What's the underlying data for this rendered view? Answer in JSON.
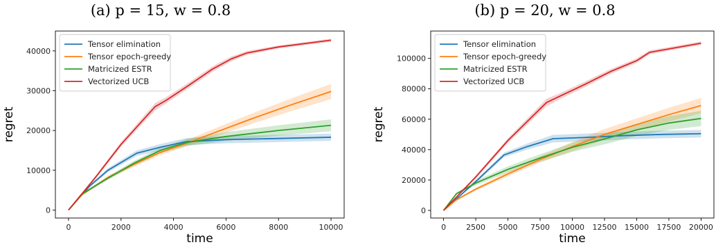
{
  "chart_data": [
    {
      "type": "line",
      "title": "(a) p = 15, w = 0.8",
      "xlabel": "time",
      "ylabel": "regret",
      "xlim": [
        -500,
        10500
      ],
      "ylim": [
        -2000,
        45000
      ],
      "xticks": [
        0,
        2000,
        4000,
        6000,
        8000,
        10000
      ],
      "yticks": [
        0,
        10000,
        20000,
        30000,
        40000
      ],
      "grid": false,
      "legend": "top-left",
      "series": [
        {
          "name": "Tensor elimination",
          "color": "#1f77b4",
          "x": [
            0,
            800,
            1500,
            2600,
            3500,
            4500,
            6000,
            8000,
            10000
          ],
          "y": [
            0,
            6000,
            10000,
            14300,
            15800,
            17200,
            17700,
            18000,
            18300
          ],
          "band": [
            0,
            300,
            500,
            700,
            800,
            900,
            900,
            900,
            900
          ]
        },
        {
          "name": "Tensor epoch-greedy",
          "color": "#ff7f0e",
          "x": [
            0,
            500,
            1500,
            2500,
            3500,
            4500,
            5500,
            7000,
            8500,
            10000
          ],
          "y": [
            0,
            3800,
            8200,
            11500,
            14500,
            16800,
            19300,
            23000,
            26500,
            29800
          ],
          "band": [
            0,
            300,
            400,
            600,
            700,
            800,
            1000,
            1300,
            1600,
            1900
          ]
        },
        {
          "name": "Matricized ESTR",
          "color": "#2ca02c",
          "x": [
            0,
            500,
            1500,
            2500,
            3500,
            4500,
            6000,
            8000,
            10000
          ],
          "y": [
            0,
            4000,
            8000,
            11800,
            15000,
            17000,
            18500,
            20000,
            21300
          ],
          "band": [
            0,
            300,
            400,
            600,
            700,
            900,
            1100,
            1300,
            1500
          ]
        },
        {
          "name": "Vectorized UCB",
          "color": "#d62728",
          "x": [
            0,
            1000,
            2000,
            3300,
            3700,
            4500,
            5500,
            6200,
            6800,
            8000,
            10000
          ],
          "y": [
            0,
            8000,
            16500,
            26000,
            27500,
            31000,
            35500,
            38000,
            39500,
            41000,
            42700
          ],
          "band": [
            0,
            400,
            600,
            900,
            800,
            700,
            700,
            600,
            500,
            400,
            400
          ]
        }
      ]
    },
    {
      "type": "line",
      "title": "(b) p = 20, w = 0.8",
      "xlabel": "time",
      "ylabel": "regret",
      "xlim": [
        -1000,
        21000
      ],
      "ylim": [
        -5000,
        118000
      ],
      "xticks": [
        0,
        2500,
        5000,
        7500,
        10000,
        12500,
        15000,
        17500,
        20000
      ],
      "yticks": [
        0,
        20000,
        40000,
        60000,
        80000,
        100000
      ],
      "grid": false,
      "legend": "top-left",
      "series": [
        {
          "name": "Tensor elimination",
          "color": "#1f77b4",
          "x": [
            0,
            2500,
            4700,
            6500,
            8500,
            11000,
            14000,
            17000,
            20000
          ],
          "y": [
            0,
            19000,
            36500,
            42000,
            47200,
            48000,
            49200,
            50000,
            50500
          ],
          "band": [
            0,
            1000,
            1500,
            2000,
            2500,
            2500,
            2500,
            2500,
            2500
          ]
        },
        {
          "name": "Tensor epoch-greedy",
          "color": "#ff7f0e",
          "x": [
            0,
            1000,
            2500,
            5000,
            7500,
            10000,
            12500,
            15000,
            17500,
            20000
          ],
          "y": [
            0,
            7000,
            14000,
            24000,
            33500,
            42000,
            50000,
            56500,
            63000,
            69000
          ],
          "band": [
            0,
            500,
            1000,
            1500,
            2000,
            3000,
            3500,
            4000,
            4500,
            5000
          ]
        },
        {
          "name": "Matricized ESTR",
          "color": "#2ca02c",
          "x": [
            0,
            1000,
            2500,
            5000,
            7500,
            10000,
            12500,
            15000,
            17500,
            20000
          ],
          "y": [
            0,
            11000,
            18000,
            27000,
            34500,
            41500,
            47000,
            53000,
            57500,
            60500
          ],
          "band": [
            0,
            800,
            1500,
            2000,
            2500,
            3000,
            3500,
            4000,
            4500,
            5000
          ]
        },
        {
          "name": "Vectorized UCB",
          "color": "#d62728",
          "x": [
            0,
            2500,
            5000,
            8000,
            9000,
            11000,
            13000,
            15000,
            16000,
            18000,
            20000
          ],
          "y": [
            0,
            22000,
            46000,
            71000,
            75000,
            83000,
            91500,
            98500,
            104000,
            107000,
            110000
          ],
          "band": [
            0,
            1000,
            1500,
            2500,
            2000,
            1800,
            1600,
            1500,
            1300,
            1200,
            1200
          ]
        }
      ]
    }
  ]
}
